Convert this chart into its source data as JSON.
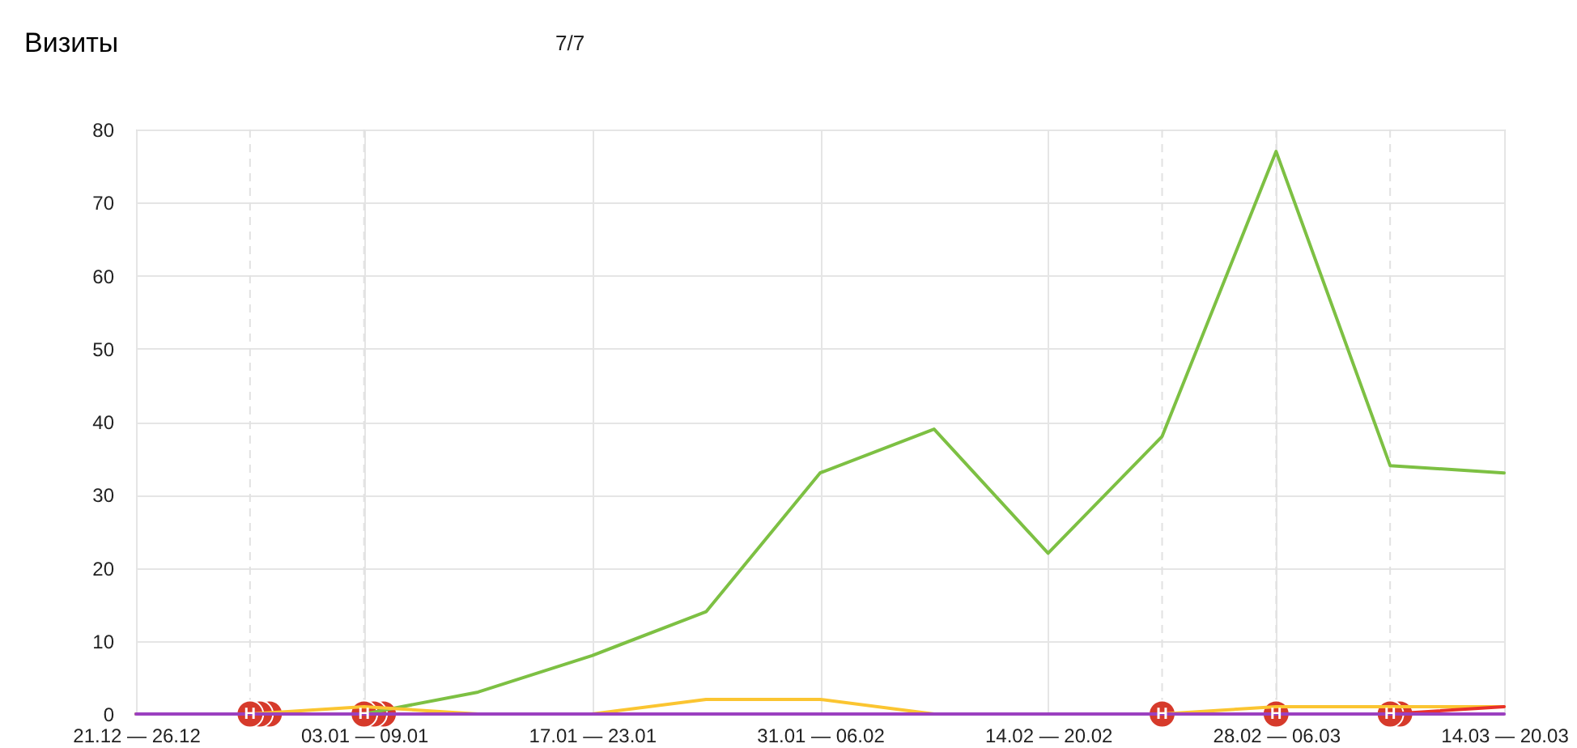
{
  "chart_data": {
    "type": "line",
    "title": "Визиты",
    "annotations": [
      "7/7"
    ],
    "categories": [
      "21.12 — 26.12",
      null,
      "03.01 — 09.01",
      null,
      "17.01 — 23.01",
      null,
      "31.01 — 06.02",
      null,
      "14.02 — 20.02",
      null,
      "28.02 — 06.03",
      null,
      "14.03 — 20.03"
    ],
    "series": [
      {
        "color": "#7dc043",
        "values": [
          0,
          0,
          0,
          3,
          8,
          14,
          33,
          39,
          22,
          38,
          77,
          34,
          33
        ]
      },
      {
        "color": "#fbc531",
        "values": [
          0,
          0,
          1,
          0,
          0,
          2,
          2,
          0,
          0,
          0,
          1,
          1,
          1
        ]
      },
      {
        "color": "#e8312b",
        "values": [
          null,
          null,
          null,
          null,
          null,
          null,
          null,
          null,
          null,
          null,
          null,
          0,
          1
        ]
      },
      {
        "color": "#9b40c0",
        "values": [
          0,
          0,
          0,
          0,
          0,
          0,
          0,
          0,
          0,
          0,
          0,
          0,
          0
        ]
      },
      {
        "type": "scatter",
        "color": "#d63a2b",
        "marker": "circle",
        "values": [
          null,
          0,
          0,
          null,
          null,
          null,
          null,
          null,
          null,
          null,
          null,
          null,
          null
        ]
      },
      {
        "type": "scatter",
        "color": "#d63a2b",
        "marker": "circle",
        "values": [
          null,
          0,
          0,
          null,
          null,
          null,
          null,
          null,
          null,
          null,
          null,
          0,
          null
        ]
      },
      {
        "type": "scatter",
        "color": "#d63a2b",
        "marker": "circle",
        "values": [
          null,
          0,
          0,
          null,
          null,
          null,
          null,
          null,
          null,
          0,
          0,
          0,
          null
        ],
        "value_labels": [
          null,
          "Н",
          "Н",
          null,
          null,
          null,
          null,
          null,
          null,
          "Н",
          "Н",
          "Н",
          null
        ]
      }
    ],
    "ylim": [
      0,
      80
    ],
    "yticks": [
      0,
      10,
      20,
      30,
      40,
      50,
      60,
      70,
      80
    ],
    "grid": true
  }
}
